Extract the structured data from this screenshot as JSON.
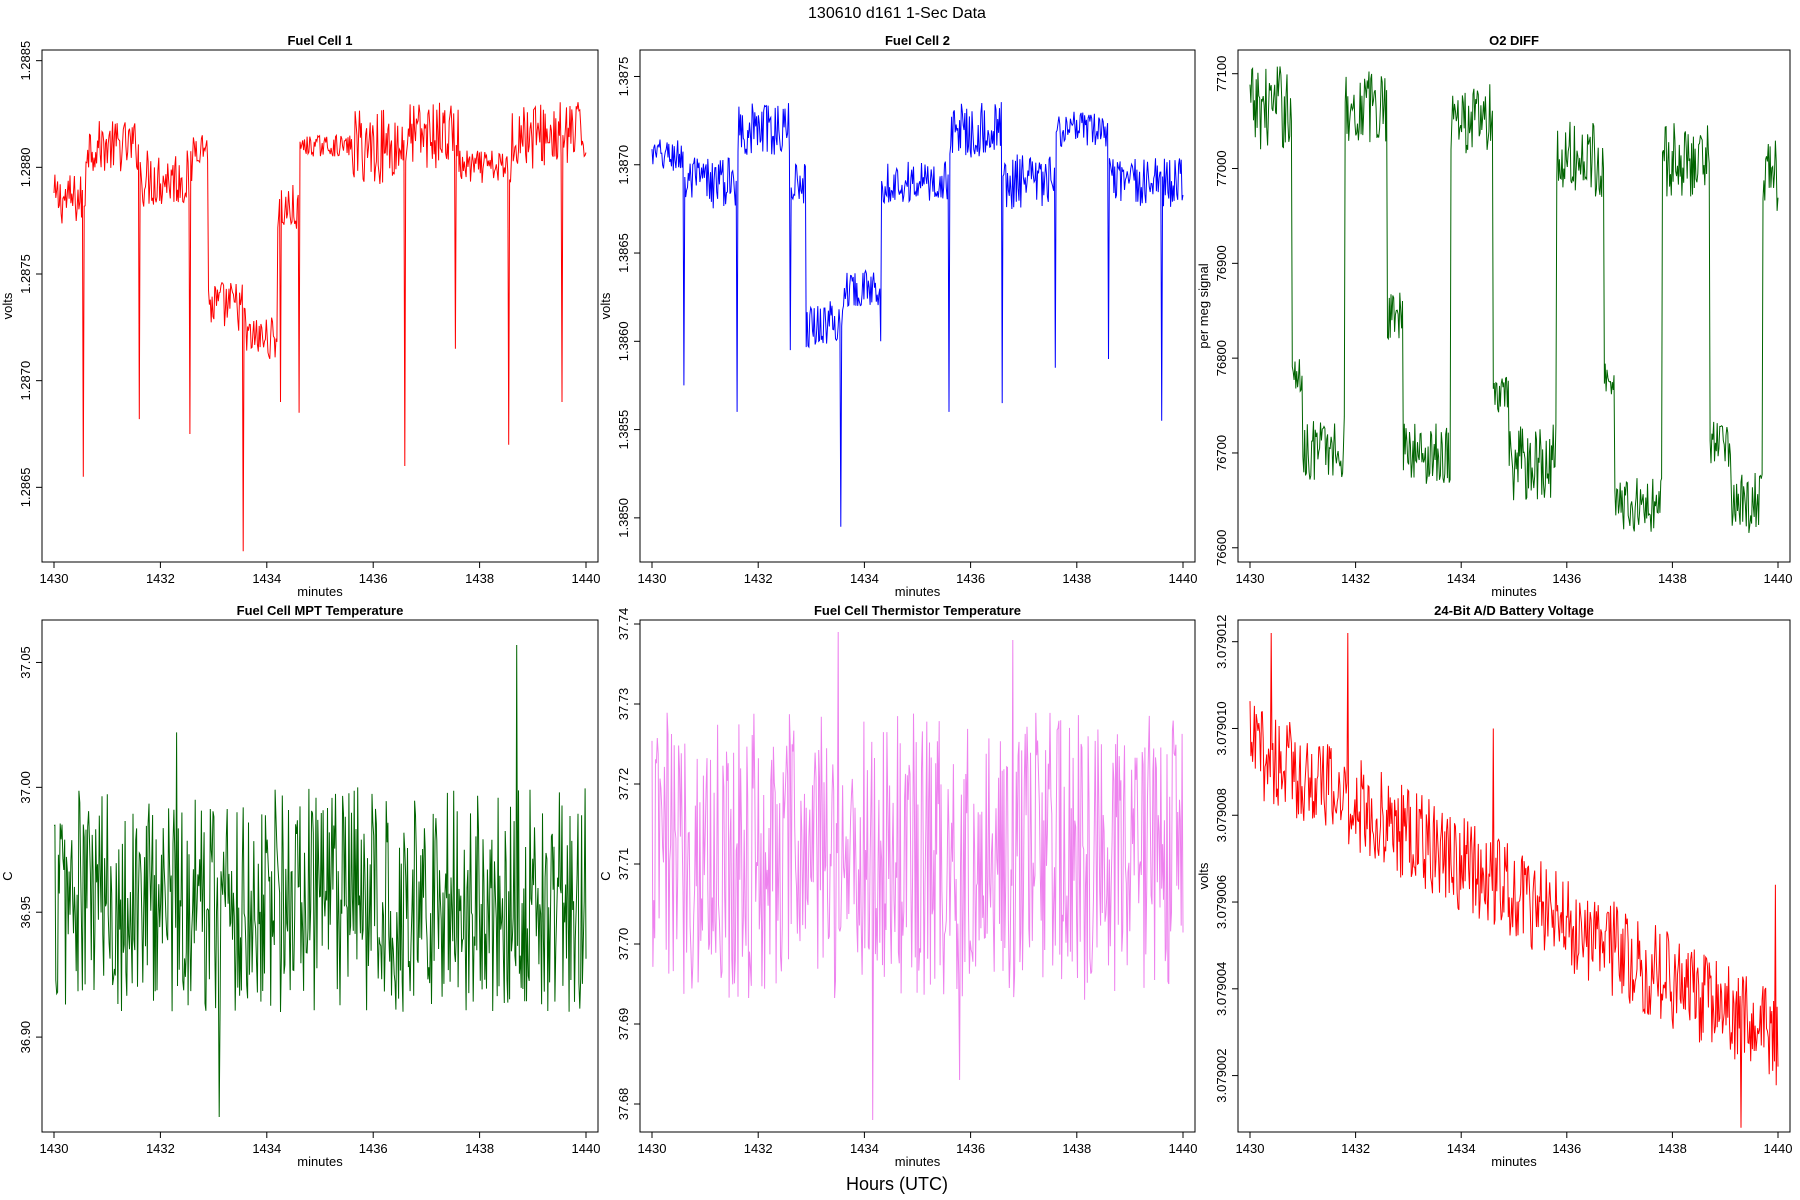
{
  "figure": {
    "title": "130610   d161   1-Sec Data",
    "xlabel": "Hours (UTC)"
  },
  "chart_data": [
    {
      "type": "line",
      "title": "Fuel Cell 1",
      "xlabel": "minutes",
      "ylabel": "volts",
      "color": "#ff0000",
      "xlim": [
        1430,
        1440
      ],
      "ylim": [
        1.28615,
        1.28855
      ],
      "xticks": [
        "1430",
        "1432",
        "1434",
        "1436",
        "1438",
        "1440"
      ],
      "yticks": [
        "1.2865",
        "1.2870",
        "1.2875",
        "1.2880",
        "1.2885"
      ],
      "segments": [
        {
          "x0": 1430.0,
          "x1": 1430.6,
          "mean": 1.28785,
          "amp": 0.00012
        },
        {
          "x0": 1430.6,
          "x1": 1431.6,
          "mean": 1.2881,
          "amp": 0.00012
        },
        {
          "x0": 1431.6,
          "x1": 1432.6,
          "mean": 1.28795,
          "amp": 0.00014
        },
        {
          "x0": 1432.6,
          "x1": 1432.9,
          "mean": 1.2881,
          "amp": 8e-05
        },
        {
          "x0": 1432.9,
          "x1": 1433.6,
          "mean": 1.28735,
          "amp": 0.00012
        },
        {
          "x0": 1433.6,
          "x1": 1434.2,
          "mean": 1.2872,
          "amp": 0.0001
        },
        {
          "x0": 1434.2,
          "x1": 1434.6,
          "mean": 1.2878,
          "amp": 0.00012
        },
        {
          "x0": 1434.6,
          "x1": 1435.6,
          "mean": 1.2881,
          "amp": 5e-05
        },
        {
          "x0": 1435.6,
          "x1": 1436.6,
          "mean": 1.2881,
          "amp": 0.00018
        },
        {
          "x0": 1436.6,
          "x1": 1437.6,
          "mean": 1.28815,
          "amp": 0.00016
        },
        {
          "x0": 1437.6,
          "x1": 1438.6,
          "mean": 1.288,
          "amp": 8e-05
        },
        {
          "x0": 1438.6,
          "x1": 1440.0,
          "mean": 1.28815,
          "amp": 0.00016
        }
      ],
      "spikes": [
        {
          "x": 1430.55,
          "y": 1.28655
        },
        {
          "x": 1431.6,
          "y": 1.28682
        },
        {
          "x": 1432.55,
          "y": 1.28675
        },
        {
          "x": 1433.55,
          "y": 1.2862
        },
        {
          "x": 1434.25,
          "y": 1.2869
        },
        {
          "x": 1434.6,
          "y": 1.28685
        },
        {
          "x": 1436.6,
          "y": 1.2866
        },
        {
          "x": 1437.55,
          "y": 1.28715
        },
        {
          "x": 1438.55,
          "y": 1.2867
        },
        {
          "x": 1439.55,
          "y": 1.2869
        }
      ]
    },
    {
      "type": "line",
      "title": "Fuel Cell 2",
      "xlabel": "minutes",
      "ylabel": "volts",
      "color": "#0000ff",
      "xlim": [
        1430,
        1440
      ],
      "ylim": [
        1.38475,
        1.38765
      ],
      "xticks": [
        "1430",
        "1432",
        "1434",
        "1436",
        "1438",
        "1440"
      ],
      "yticks": [
        "1.3850",
        "1.3855",
        "1.3860",
        "1.3865",
        "1.3870",
        "1.3875"
      ],
      "segments": [
        {
          "x0": 1430.0,
          "x1": 1430.6,
          "mean": 1.38705,
          "amp": 0.0001
        },
        {
          "x0": 1430.6,
          "x1": 1431.6,
          "mean": 1.3869,
          "amp": 0.00015
        },
        {
          "x0": 1431.6,
          "x1": 1432.6,
          "mean": 1.3872,
          "amp": 0.00015
        },
        {
          "x0": 1432.6,
          "x1": 1432.9,
          "mean": 1.3869,
          "amp": 0.00012
        },
        {
          "x0": 1432.9,
          "x1": 1433.6,
          "mean": 1.3861,
          "amp": 0.00014
        },
        {
          "x0": 1433.6,
          "x1": 1434.3,
          "mean": 1.3863,
          "amp": 0.0001
        },
        {
          "x0": 1434.3,
          "x1": 1435.6,
          "mean": 1.3869,
          "amp": 0.00012
        },
        {
          "x0": 1435.6,
          "x1": 1436.6,
          "mean": 1.3872,
          "amp": 0.00016
        },
        {
          "x0": 1436.6,
          "x1": 1437.6,
          "mean": 1.3869,
          "amp": 0.00016
        },
        {
          "x0": 1437.6,
          "x1": 1438.6,
          "mean": 1.3872,
          "amp": 0.0001
        },
        {
          "x0": 1438.6,
          "x1": 1440.0,
          "mean": 1.3869,
          "amp": 0.00014
        }
      ],
      "spikes": [
        {
          "x": 1430.6,
          "y": 1.38575
        },
        {
          "x": 1431.6,
          "y": 1.3856
        },
        {
          "x": 1432.6,
          "y": 1.38595
        },
        {
          "x": 1433.55,
          "y": 1.38495
        },
        {
          "x": 1434.3,
          "y": 1.386
        },
        {
          "x": 1435.6,
          "y": 1.3856
        },
        {
          "x": 1436.6,
          "y": 1.38565
        },
        {
          "x": 1437.6,
          "y": 1.38585
        },
        {
          "x": 1438.6,
          "y": 1.3859
        },
        {
          "x": 1439.6,
          "y": 1.38555
        }
      ]
    },
    {
      "type": "line",
      "title": "O2 DIFF",
      "xlabel": "minutes",
      "ylabel": "per meg signal",
      "color": "#006400",
      "xlim": [
        1430,
        1440
      ],
      "ylim": [
        76585,
        77125
      ],
      "xticks": [
        "1430",
        "1432",
        "1434",
        "1436",
        "1438",
        "1440"
      ],
      "yticks": [
        "76600",
        "76700",
        "76800",
        "76900",
        "77000",
        "77100"
      ],
      "segments": [
        {
          "x0": 1430.0,
          "x1": 1430.8,
          "mean": 77065,
          "amp": 45
        },
        {
          "x0": 1430.8,
          "x1": 1431.0,
          "mean": 76780,
          "amp": 20
        },
        {
          "x0": 1431.0,
          "x1": 1431.8,
          "mean": 76705,
          "amp": 35
        },
        {
          "x0": 1431.8,
          "x1": 1432.6,
          "mean": 77065,
          "amp": 40
        },
        {
          "x0": 1432.6,
          "x1": 1432.9,
          "mean": 76850,
          "amp": 30
        },
        {
          "x0": 1432.9,
          "x1": 1433.8,
          "mean": 76700,
          "amp": 35
        },
        {
          "x0": 1433.8,
          "x1": 1434.6,
          "mean": 77050,
          "amp": 40
        },
        {
          "x0": 1434.6,
          "x1": 1434.9,
          "mean": 76760,
          "amp": 20
        },
        {
          "x0": 1434.9,
          "x1": 1435.8,
          "mean": 76690,
          "amp": 40
        },
        {
          "x0": 1435.8,
          "x1": 1436.7,
          "mean": 77010,
          "amp": 40
        },
        {
          "x0": 1436.7,
          "x1": 1436.9,
          "mean": 76780,
          "amp": 20
        },
        {
          "x0": 1436.9,
          "x1": 1437.8,
          "mean": 76645,
          "amp": 30
        },
        {
          "x0": 1437.8,
          "x1": 1438.7,
          "mean": 77010,
          "amp": 40
        },
        {
          "x0": 1438.7,
          "x1": 1439.1,
          "mean": 76710,
          "amp": 25
        },
        {
          "x0": 1439.1,
          "x1": 1439.7,
          "mean": 76650,
          "amp": 35
        },
        {
          "x0": 1439.7,
          "x1": 1440.0,
          "mean": 76990,
          "amp": 40
        }
      ],
      "spikes": []
    },
    {
      "type": "line",
      "title": "Fuel Cell MPT Temperature",
      "xlabel": "minutes",
      "ylabel": "C",
      "color": "#006400",
      "xlim": [
        1430,
        1440
      ],
      "ylim": [
        36.862,
        37.067
      ],
      "xticks": [
        "1430",
        "1432",
        "1434",
        "1436",
        "1438",
        "1440"
      ],
      "yticks": [
        "36.90",
        "36.95",
        "37.00",
        "37.05"
      ],
      "segments": [
        {
          "x0": 1430.0,
          "x1": 1440.0,
          "mean": 36.955,
          "amp": 0.045
        }
      ],
      "spikes": [
        {
          "x": 1433.1,
          "y": 36.868
        },
        {
          "x": 1438.7,
          "y": 37.057
        },
        {
          "x": 1432.3,
          "y": 37.022
        }
      ]
    },
    {
      "type": "line",
      "title": "Fuel Cell Thermistor Temperature",
      "xlabel": "minutes",
      "ylabel": "C",
      "color": "#ee82ee",
      "xlim": [
        1430,
        1440
      ],
      "ylim": [
        37.6765,
        37.7405
      ],
      "xticks": [
        "1430",
        "1432",
        "1434",
        "1436",
        "1438",
        "1440"
      ],
      "yticks": [
        "37.68",
        "37.69",
        "37.70",
        "37.71",
        "37.72",
        "37.73",
        "37.74"
      ],
      "segments": [
        {
          "x0": 1430.0,
          "x1": 1440.0,
          "mean": 37.711,
          "amp": 0.018
        }
      ],
      "spikes": [
        {
          "x": 1434.15,
          "y": 37.678
        },
        {
          "x": 1433.5,
          "y": 37.739
        },
        {
          "x": 1435.8,
          "y": 37.683
        },
        {
          "x": 1436.8,
          "y": 37.738
        }
      ]
    },
    {
      "type": "line",
      "title": "24-Bit A/D Battery Voltage",
      "xlabel": "minutes",
      "ylabel": "volts",
      "color": "#ff0000",
      "xlim": [
        1430,
        1440
      ],
      "ylim": [
        3.0790007,
        3.0790125
      ],
      "xticks": [
        "1430",
        "1432",
        "1434",
        "1436",
        "1438",
        "1440"
      ],
      "yticks": [
        "3.079002",
        "3.079004",
        "3.079006",
        "3.079008",
        "3.079010",
        "3.079012"
      ],
      "trend": {
        "x0": 1430.0,
        "y0": 3.0790096,
        "x1": 1440.0,
        "y1": 3.0790028
      },
      "amp": 1.1e-06,
      "spikes": [
        {
          "x": 1430.4,
          "y": 3.0790122
        },
        {
          "x": 1431.85,
          "y": 3.0790122
        },
        {
          "x": 1439.3,
          "y": 3.0790008
        },
        {
          "x": 1439.95,
          "y": 3.0790064
        },
        {
          "x": 1434.6,
          "y": 3.07901
        }
      ]
    }
  ]
}
